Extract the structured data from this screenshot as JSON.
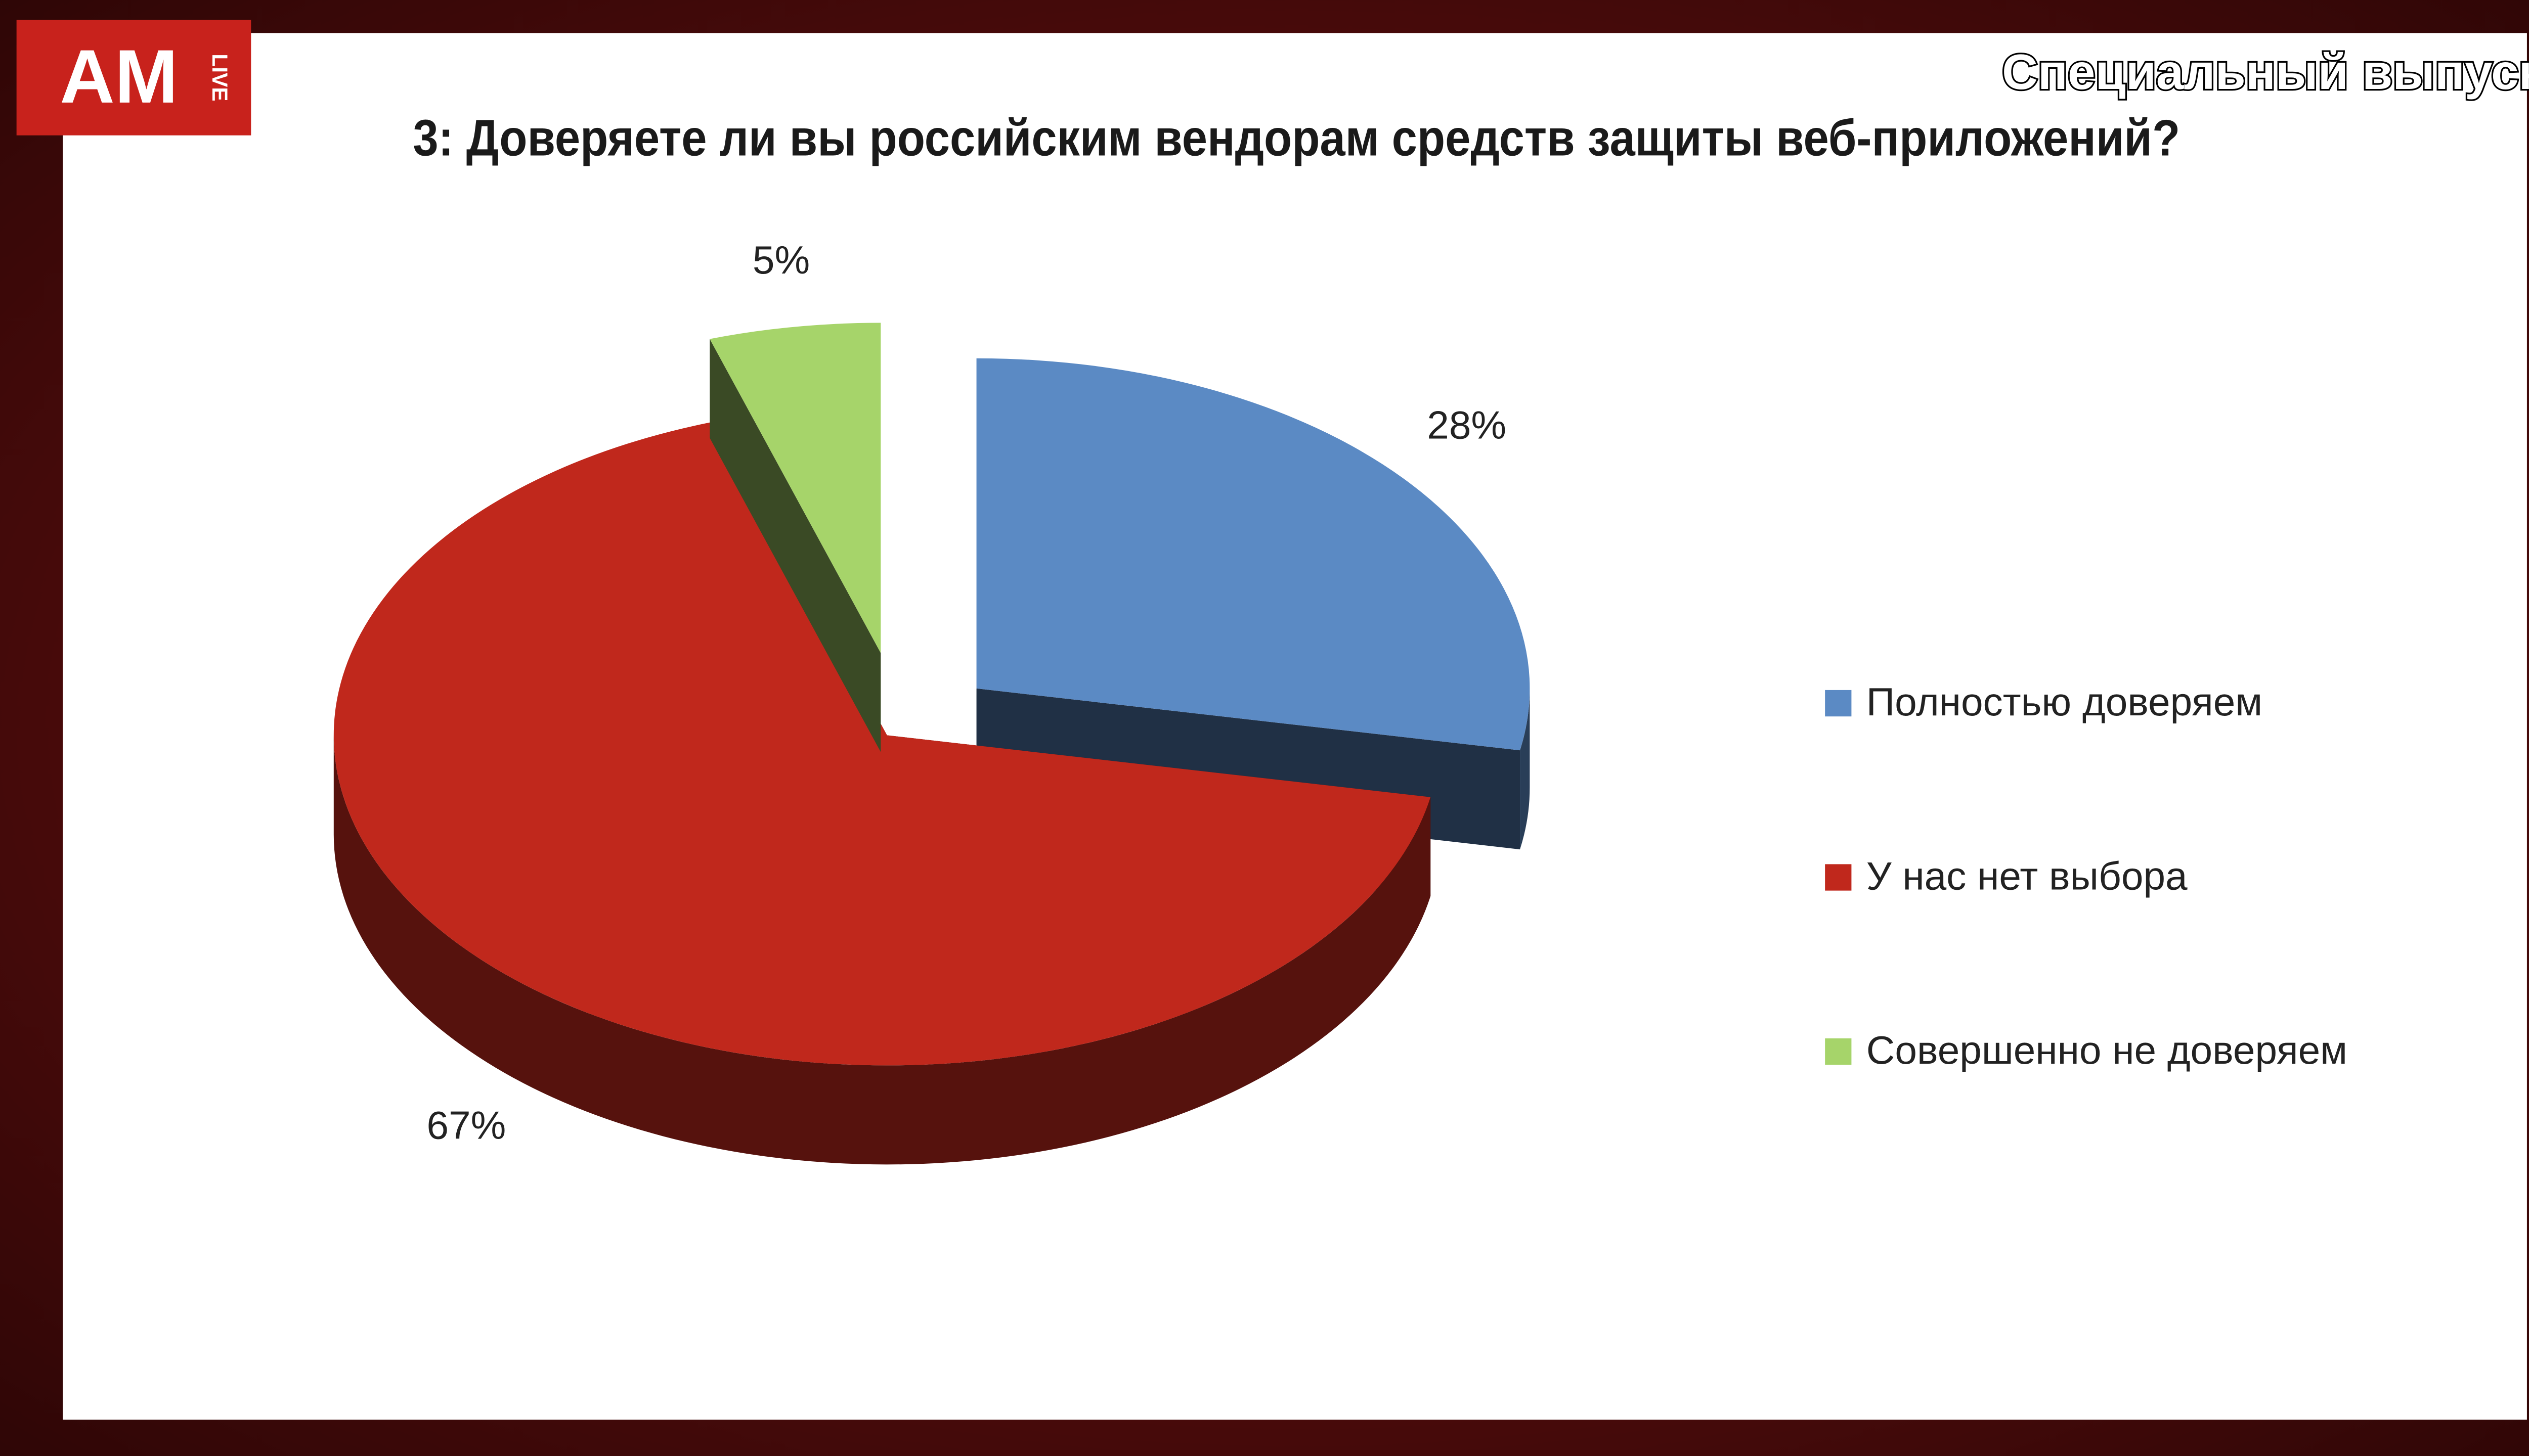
{
  "header": {
    "logo": "AM",
    "logo_sub": "LIVE",
    "badge": "Специальный выпуск"
  },
  "chart_data": {
    "type": "pie",
    "title": "3: Доверяете ли вы российским вендорам средств защиты веб-приложений?",
    "categories": [
      "Полностью доверяем",
      "У нас нет выбора",
      "Совершенно не доверяем"
    ],
    "values": [
      28,
      67,
      5
    ],
    "value_labels": [
      "28%",
      "67%",
      "5%"
    ],
    "colors": [
      "#5b8ac4",
      "#c0281c",
      "#a6d46a"
    ],
    "legend": "right"
  }
}
